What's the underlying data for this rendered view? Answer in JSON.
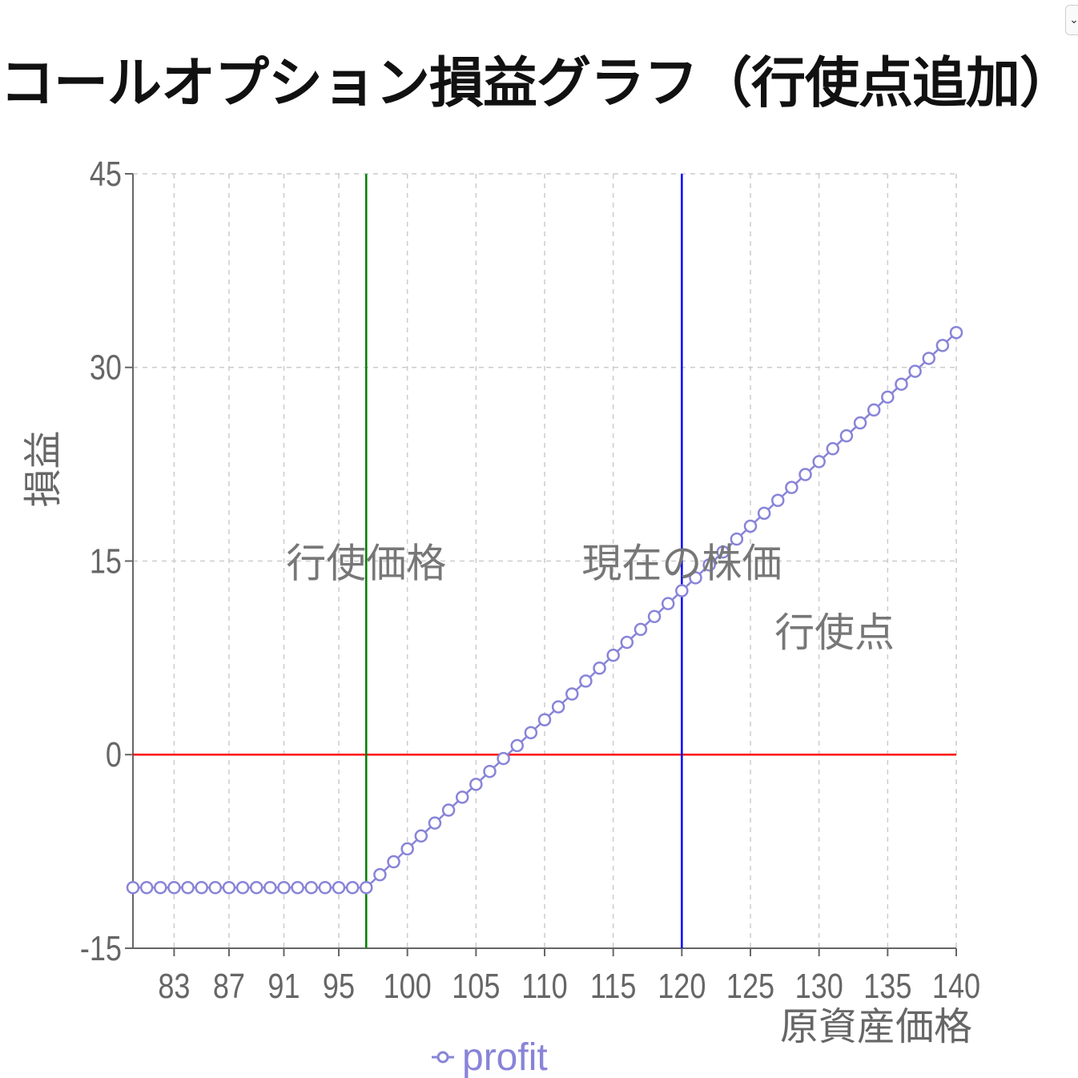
{
  "page": {
    "title": "コールオプション損益グラフ（行使点追加）",
    "dropdown_icon": "chevron-down-icon"
  },
  "chart_data": {
    "type": "line",
    "title": "",
    "xlabel": "原資産価格",
    "ylabel": "損益",
    "xlim": [
      80,
      140
    ],
    "ylim": [
      -15,
      45
    ],
    "x_ticks": [
      83,
      87,
      91,
      95,
      100,
      105,
      110,
      115,
      120,
      125,
      130,
      135,
      140
    ],
    "y_ticks": [
      -15,
      0,
      15,
      30,
      45
    ],
    "grid": true,
    "legend": "bottom",
    "series": [
      {
        "name": "profit",
        "color": "#8884d8",
        "x": [
          80,
          81,
          82,
          83,
          84,
          85,
          86,
          87,
          88,
          89,
          90,
          91,
          92,
          93,
          94,
          95,
          96,
          97,
          98,
          99,
          100,
          101,
          102,
          103,
          104,
          105,
          106,
          107,
          108,
          109,
          110,
          111,
          112,
          113,
          114,
          115,
          116,
          117,
          118,
          119,
          120,
          121,
          122,
          123,
          124,
          125,
          126,
          127,
          128,
          129,
          130,
          131,
          132,
          133,
          134,
          135,
          136,
          137,
          138,
          139,
          140
        ],
        "values": [
          -10.3,
          -10.3,
          -10.3,
          -10.3,
          -10.3,
          -10.3,
          -10.3,
          -10.3,
          -10.3,
          -10.3,
          -10.3,
          -10.3,
          -10.3,
          -10.3,
          -10.3,
          -10.3,
          -10.3,
          -10.3,
          -9.3,
          -8.3,
          -7.3,
          -6.3,
          -5.3,
          -4.3,
          -3.3,
          -2.3,
          -1.3,
          -0.3,
          0.7,
          1.7,
          2.7,
          3.7,
          4.7,
          5.7,
          6.7,
          7.7,
          8.7,
          9.7,
          10.7,
          11.7,
          12.7,
          13.7,
          14.7,
          15.7,
          16.7,
          17.7,
          18.7,
          19.7,
          20.7,
          21.7,
          22.7,
          23.7,
          24.7,
          25.7,
          26.7,
          27.7,
          28.7,
          29.7,
          30.7,
          31.7,
          32.7
        ]
      }
    ],
    "reference_lines": [
      {
        "axis": "y",
        "value": 0,
        "color": "#ff0000"
      },
      {
        "axis": "x",
        "value": 97,
        "color": "#008000",
        "label": "行使価格"
      },
      {
        "axis": "x",
        "value": 120,
        "color": "#0000ff",
        "label": "現在の株価"
      }
    ],
    "annotations": [
      {
        "text": "行使点",
        "x": 133,
        "y": 9.5
      }
    ]
  }
}
